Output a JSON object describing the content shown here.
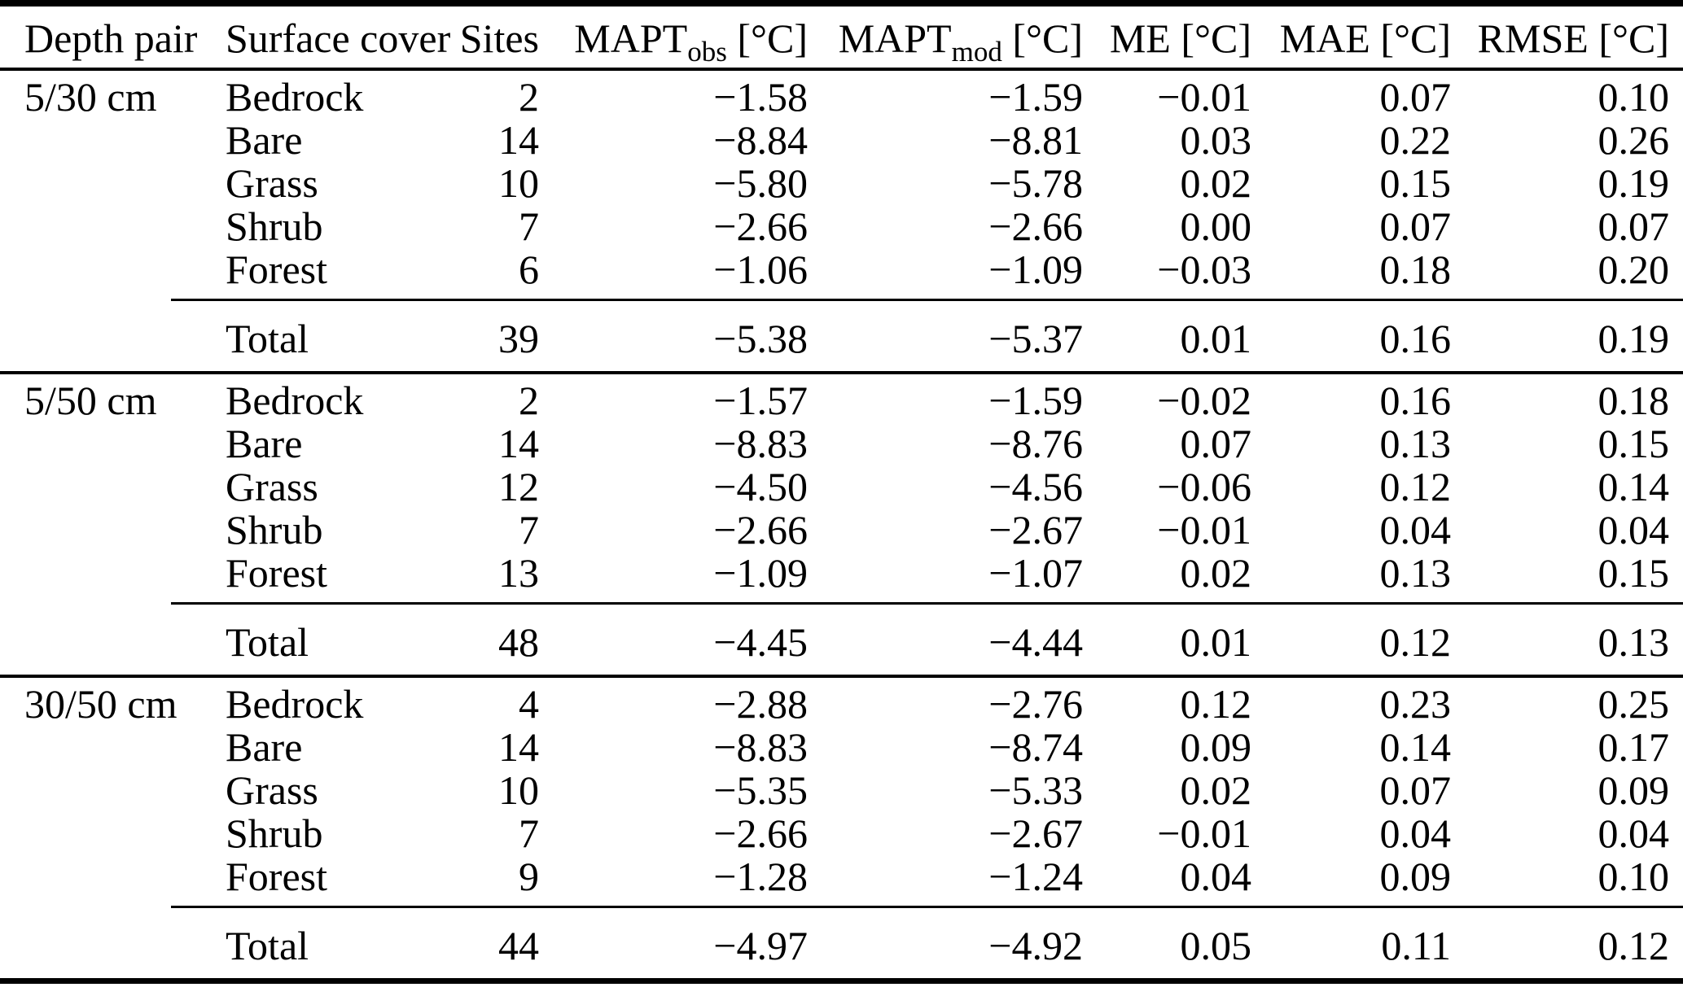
{
  "page": {
    "background": "#ffffff",
    "text_color": "#000000",
    "rule_color": "#000000"
  },
  "table": {
    "columns": [
      {
        "key": "depth_pair",
        "pre": "Depth pair",
        "sub": "",
        "post": ""
      },
      {
        "key": "surface_cover",
        "pre": "Surface cover",
        "sub": "",
        "post": ""
      },
      {
        "key": "sites",
        "pre": "Sites",
        "sub": "",
        "post": ""
      },
      {
        "key": "mapt_obs",
        "pre": "MAPT",
        "sub": "obs",
        "post": " [°C]"
      },
      {
        "key": "mapt_mod",
        "pre": "MAPT",
        "sub": "mod",
        "post": " [°C]"
      },
      {
        "key": "me",
        "pre": "ME",
        "sub": "",
        "post": " [°C]"
      },
      {
        "key": "mae",
        "pre": "MAE",
        "sub": "",
        "post": " [°C]"
      },
      {
        "key": "rmse",
        "pre": "RMSE",
        "sub": "",
        "post": " [°C]"
      }
    ],
    "groups": [
      {
        "depth_pair": "5/30 cm",
        "rows": [
          {
            "surface_cover": "Bedrock",
            "sites": "2",
            "mapt_obs": "−1.58",
            "mapt_mod": "−1.59",
            "me": "−0.01",
            "mae": "0.07",
            "rmse": "0.10"
          },
          {
            "surface_cover": "Bare",
            "sites": "14",
            "mapt_obs": "−8.84",
            "mapt_mod": "−8.81",
            "me": "0.03",
            "mae": "0.22",
            "rmse": "0.26"
          },
          {
            "surface_cover": "Grass",
            "sites": "10",
            "mapt_obs": "−5.80",
            "mapt_mod": "−5.78",
            "me": "0.02",
            "mae": "0.15",
            "rmse": "0.19"
          },
          {
            "surface_cover": "Shrub",
            "sites": "7",
            "mapt_obs": "−2.66",
            "mapt_mod": "−2.66",
            "me": "0.00",
            "mae": "0.07",
            "rmse": "0.07"
          },
          {
            "surface_cover": "Forest",
            "sites": "6",
            "mapt_obs": "−1.06",
            "mapt_mod": "−1.09",
            "me": "−0.03",
            "mae": "0.18",
            "rmse": "0.20"
          }
        ],
        "total": {
          "surface_cover": "Total",
          "sites": "39",
          "mapt_obs": "−5.38",
          "mapt_mod": "−5.37",
          "me": "0.01",
          "mae": "0.16",
          "rmse": "0.19"
        }
      },
      {
        "depth_pair": "5/50 cm",
        "rows": [
          {
            "surface_cover": "Bedrock",
            "sites": "2",
            "mapt_obs": "−1.57",
            "mapt_mod": "−1.59",
            "me": "−0.02",
            "mae": "0.16",
            "rmse": "0.18"
          },
          {
            "surface_cover": "Bare",
            "sites": "14",
            "mapt_obs": "−8.83",
            "mapt_mod": "−8.76",
            "me": "0.07",
            "mae": "0.13",
            "rmse": "0.15"
          },
          {
            "surface_cover": "Grass",
            "sites": "12",
            "mapt_obs": "−4.50",
            "mapt_mod": "−4.56",
            "me": "−0.06",
            "mae": "0.12",
            "rmse": "0.14"
          },
          {
            "surface_cover": "Shrub",
            "sites": "7",
            "mapt_obs": "−2.66",
            "mapt_mod": "−2.67",
            "me": "−0.01",
            "mae": "0.04",
            "rmse": "0.04"
          },
          {
            "surface_cover": "Forest",
            "sites": "13",
            "mapt_obs": "−1.09",
            "mapt_mod": "−1.07",
            "me": "0.02",
            "mae": "0.13",
            "rmse": "0.15"
          }
        ],
        "total": {
          "surface_cover": "Total",
          "sites": "48",
          "mapt_obs": "−4.45",
          "mapt_mod": "−4.44",
          "me": "0.01",
          "mae": "0.12",
          "rmse": "0.13"
        }
      },
      {
        "depth_pair": "30/50 cm",
        "rows": [
          {
            "surface_cover": "Bedrock",
            "sites": "4",
            "mapt_obs": "−2.88",
            "mapt_mod": "−2.76",
            "me": "0.12",
            "mae": "0.23",
            "rmse": "0.25"
          },
          {
            "surface_cover": "Bare",
            "sites": "14",
            "mapt_obs": "−8.83",
            "mapt_mod": "−8.74",
            "me": "0.09",
            "mae": "0.14",
            "rmse": "0.17"
          },
          {
            "surface_cover": "Grass",
            "sites": "10",
            "mapt_obs": "−5.35",
            "mapt_mod": "−5.33",
            "me": "0.02",
            "mae": "0.07",
            "rmse": "0.09"
          },
          {
            "surface_cover": "Shrub",
            "sites": "7",
            "mapt_obs": "−2.66",
            "mapt_mod": "−2.67",
            "me": "−0.01",
            "mae": "0.04",
            "rmse": "0.04"
          },
          {
            "surface_cover": "Forest",
            "sites": "9",
            "mapt_obs": "−1.28",
            "mapt_mod": "−1.24",
            "me": "0.04",
            "mae": "0.09",
            "rmse": "0.10"
          }
        ],
        "total": {
          "surface_cover": "Total",
          "sites": "44",
          "mapt_obs": "−4.97",
          "mapt_mod": "−4.92",
          "me": "0.05",
          "mae": "0.11",
          "rmse": "0.12"
        }
      }
    ]
  }
}
